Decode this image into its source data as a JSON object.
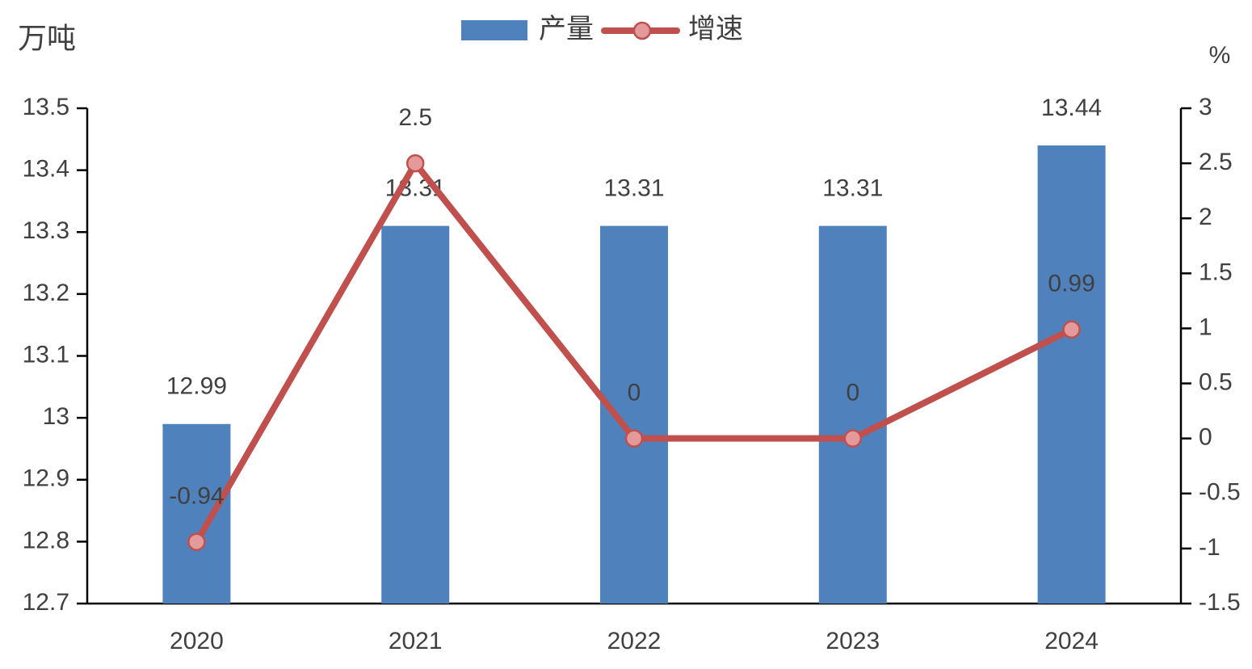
{
  "chart_data": {
    "type": "bar",
    "categories": [
      "2020",
      "2021",
      "2022",
      "2023",
      "2024"
    ],
    "series": [
      {
        "name": "产量",
        "color": "#4f81bd",
        "values": [
          12.99,
          13.31,
          13.31,
          13.31,
          13.44
        ]
      },
      {
        "name": "增速",
        "type": "line",
        "axis": "y2",
        "color": "#c0504d",
        "marker_color": "#e49a9a",
        "values": [
          -0.94,
          2.5,
          0,
          0,
          0.99
        ]
      }
    ],
    "ylabel": "万吨",
    "y2label": "%",
    "ylim": [
      12.7,
      13.5
    ],
    "yticks": [
      12.7,
      12.8,
      12.9,
      13,
      13.1,
      13.2,
      13.3,
      13.4,
      13.5
    ],
    "y2lim": [
      -1.5,
      3
    ],
    "y2ticks": [
      -1.5,
      -1,
      -0.5,
      0,
      0.5,
      1,
      1.5,
      2,
      2.5,
      3
    ],
    "legend": "top"
  }
}
